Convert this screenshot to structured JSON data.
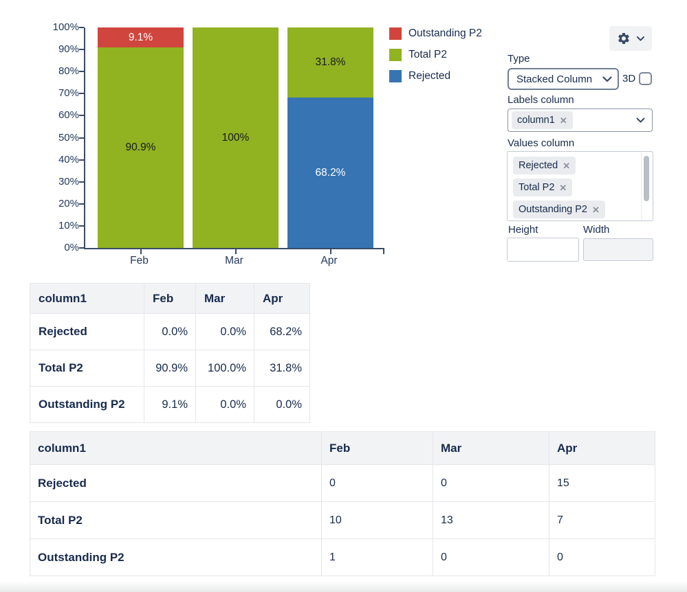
{
  "chart_data": {
    "type": "bar",
    "stacked": true,
    "value_format": "percent",
    "title": "",
    "xlabel": "",
    "ylabel": "",
    "grid": false,
    "legend_position": "right",
    "categories": [
      "Feb",
      "Mar",
      "Apr"
    ],
    "y_ticks": [
      "0%",
      "10%",
      "20%",
      "30%",
      "40%",
      "50%",
      "60%",
      "70%",
      "80%",
      "90%",
      "100%"
    ],
    "ylim": [
      0,
      100
    ],
    "stack_order_bottom_to_top": [
      "Rejected",
      "Total P2",
      "Outstanding P2"
    ],
    "series": [
      {
        "name": "Rejected",
        "color": "#3674b3",
        "label_text_color": "#ffffff",
        "values": [
          0,
          0,
          68.2
        ],
        "bar_labels": [
          "",
          "",
          "68.2%"
        ]
      },
      {
        "name": "Total P2",
        "color": "#91b221",
        "label_text_color": "#191b1e",
        "values": [
          90.9,
          100,
          31.8
        ],
        "bar_labels": [
          "90.9%",
          "100%",
          "31.8%"
        ]
      },
      {
        "name": "Outstanding P2",
        "color": "#d0453d",
        "label_text_color": "#ffffff",
        "values": [
          9.1,
          0,
          0
        ],
        "bar_labels": [
          "9.1%",
          "",
          ""
        ]
      }
    ]
  },
  "legend": {
    "items": [
      {
        "label": "Outstanding P2",
        "color": "#d0453d"
      },
      {
        "label": "Total P2",
        "color": "#91b221"
      },
      {
        "label": "Rejected",
        "color": "#3674b3"
      }
    ]
  },
  "controls": {
    "type": {
      "label": "Type",
      "value": "Stacked Column"
    },
    "threed": {
      "label": "3D",
      "checked": false
    },
    "labels_column": {
      "label": "Labels column",
      "tags": [
        "column1"
      ]
    },
    "values_column": {
      "label": "Values column",
      "tags": [
        "Rejected",
        "Total P2",
        "Outstanding P2"
      ]
    },
    "height": {
      "label": "Height",
      "value": ""
    },
    "width": {
      "label": "Width",
      "value": ""
    }
  },
  "icons": {
    "gear": "gear-icon",
    "chevron_down": "chevron-down-icon",
    "remove": "✕"
  },
  "tables": {
    "percent_table": {
      "headers": [
        "column1",
        "Feb",
        "Mar",
        "Apr"
      ],
      "rows": [
        [
          "Rejected",
          "0.0%",
          "0.0%",
          "68.2%"
        ],
        [
          "Total P2",
          "90.9%",
          "100.0%",
          "31.8%"
        ],
        [
          "Outstanding P2",
          "9.1%",
          "0.0%",
          "0.0%"
        ]
      ]
    },
    "raw_table": {
      "headers": [
        "column1",
        "Feb",
        "Mar",
        "Apr"
      ],
      "rows": [
        [
          "Rejected",
          "0",
          "0",
          "15"
        ],
        [
          "Total P2",
          "10",
          "13",
          "7"
        ],
        [
          "Outstanding P2",
          "1",
          "0",
          "0"
        ]
      ]
    }
  },
  "theme": {
    "text_navy": "#172b4d",
    "axis_color": "#3a4a66",
    "table_header_bg": "#f2f3f5",
    "table_border": "#e4e6ea",
    "tag_bg": "#e9ebee",
    "button_bg": "#f1f2f4"
  }
}
